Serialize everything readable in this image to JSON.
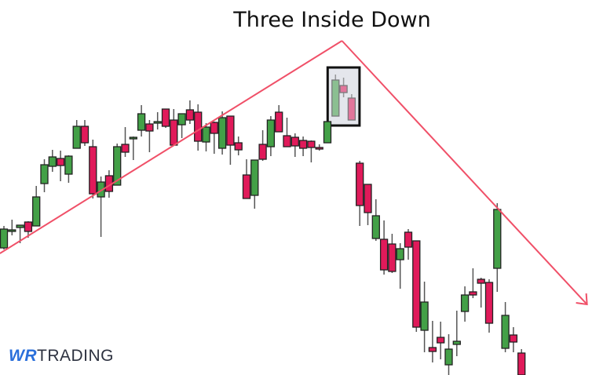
{
  "chart_data": {
    "type": "candlestick",
    "title": "Three Inside Down",
    "xlabel": "",
    "ylabel": "",
    "grid": false,
    "colors": {
      "up": "#43a047",
      "down": "#e01a5a",
      "trendline": "#f05068",
      "highlight_box": "#111111",
      "highlight_fill": "#e4e6ec"
    },
    "candles_ohlc": [
      [
        162,
        190,
        160,
        186
      ],
      [
        185,
        198,
        178,
        185
      ],
      [
        188,
        191,
        168,
        191
      ],
      [
        195,
        196,
        175,
        183
      ],
      [
        190,
        241,
        190,
        227
      ],
      [
        244,
        275,
        233,
        268
      ],
      [
        266,
        287,
        259,
        278
      ],
      [
        276,
        286,
        247,
        267
      ],
      [
        256,
        280,
        245,
        279
      ],
      [
        289,
        325,
        289,
        317
      ],
      [
        317,
        325,
        292,
        296
      ],
      [
        291,
        300,
        225,
        231
      ],
      [
        227,
        253,
        176,
        246
      ],
      [
        254,
        261,
        226,
        234
      ],
      [
        242,
        295,
        242,
        291
      ],
      [
        294,
        316,
        278,
        284
      ],
      [
        303,
        304,
        274,
        303
      ],
      [
        312,
        344,
        304,
        333
      ],
      [
        320,
        325,
        284,
        311
      ],
      [
        323,
        335,
        313,
        323
      ],
      [
        339,
        339,
        315,
        317
      ],
      [
        325,
        339,
        292,
        293
      ],
      [
        319,
        333,
        302,
        333
      ],
      [
        338,
        350,
        320,
        325
      ],
      [
        335,
        345,
        286,
        298
      ],
      [
        297,
        321,
        285,
        316
      ],
      [
        322,
        323,
        282,
        308
      ],
      [
        289,
        336,
        281,
        328
      ],
      [
        330,
        330,
        268,
        293
      ],
      [
        296,
        304,
        280,
        287
      ],
      [
        255,
        275,
        225,
        225
      ],
      [
        229,
        274,
        212,
        274
      ],
      [
        294,
        312,
        273,
        275
      ],
      [
        291,
        330,
        279,
        325
      ],
      [
        335,
        344,
        310,
        310
      ],
      [
        305,
        328,
        291,
        291
      ],
      [
        303,
        308,
        278,
        292
      ],
      [
        299,
        304,
        279,
        289
      ],
      [
        298,
        299,
        271,
        290
      ],
      [
        290,
        294,
        286,
        288
      ],
      [
        296,
        323,
        296,
        323
      ],
      [
        330,
        383,
        330,
        376
      ],
      [
        369,
        379,
        354,
        360
      ],
      [
        353,
        358,
        325,
        325
      ],
      [
        270,
        273,
        190,
        216
      ],
      [
        243,
        243,
        191,
        207
      ],
      [
        174,
        224,
        171,
        203
      ],
      [
        173,
        197,
        128,
        134
      ],
      [
        167,
        180,
        130,
        132
      ],
      [
        147,
        168,
        110,
        161
      ],
      [
        182,
        186,
        147,
        163
      ],
      [
        171,
        171,
        55,
        61
      ],
      [
        57,
        119,
        29,
        93
      ],
      [
        35,
        69,
        16,
        30
      ],
      [
        48,
        68,
        20,
        41
      ],
      [
        13,
        52,
        0,
        33
      ],
      [
        39,
        82,
        24,
        43
      ],
      [
        81,
        113,
        68,
        102
      ],
      [
        106,
        136,
        98,
        102
      ],
      [
        122,
        124,
        86,
        117
      ],
      [
        118,
        122,
        54,
        66
      ],
      [
        136,
        219,
        106,
        211
      ],
      [
        34,
        93,
        29,
        76
      ],
      [
        51,
        61,
        29,
        42
      ],
      [
        28,
        33,
        0,
        0
      ]
    ],
    "highlighted_pattern": {
      "name": "Three Inside Down",
      "candle_indices": [
        41,
        42,
        43
      ]
    },
    "trendlines": [
      {
        "direction": "up",
        "from": [
          -0.5,
          155
        ],
        "to": [
          41.8,
          426
        ]
      },
      {
        "direction": "down",
        "from": [
          41.8,
          426
        ],
        "to": [
          72.1,
          90
        ],
        "arrow": true
      }
    ]
  },
  "logo": {
    "wr": "WR",
    "trading": "TRADING"
  }
}
